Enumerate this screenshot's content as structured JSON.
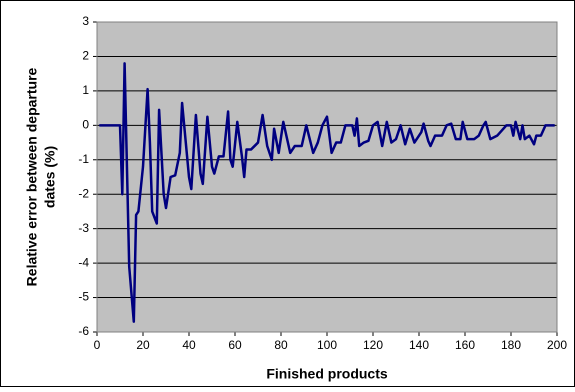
{
  "chart_data": {
    "type": "line",
    "xlabel": "Finished products",
    "ylabel": [
      "Relative error between departure",
      "dates (%)"
    ],
    "series": [
      {
        "name": "Relative error",
        "color": "#000080",
        "x": [
          1,
          10,
          11,
          12,
          14,
          16,
          17,
          18,
          20,
          22,
          23,
          24,
          26,
          27,
          29,
          30,
          32,
          34,
          36,
          37,
          40,
          41,
          43,
          45,
          46,
          48,
          50,
          51,
          53,
          55,
          57,
          58,
          59,
          61,
          63,
          64,
          65,
          67,
          70,
          72,
          74,
          76,
          77,
          79,
          81,
          84,
          86,
          89,
          91,
          94,
          96,
          98,
          100,
          102,
          104,
          106,
          108,
          111,
          112,
          113,
          114,
          116,
          118,
          120,
          122,
          124,
          126,
          128,
          130,
          132,
          134,
          136,
          138,
          141,
          142,
          144,
          145,
          147,
          150,
          152,
          154,
          156,
          158,
          159,
          161,
          164,
          166,
          168,
          169,
          171,
          174,
          178,
          180,
          181,
          182,
          184,
          185,
          186,
          188,
          190,
          191,
          193,
          195,
          199
        ],
        "values": [
          0,
          0,
          -2,
          1.8,
          -4.1,
          -5.7,
          -2.6,
          -2.5,
          -1.2,
          1.05,
          -0.5,
          -2.5,
          -2.85,
          0.45,
          -2,
          -2.4,
          -1.5,
          -1.45,
          -0.8,
          0.65,
          -1.5,
          -1.85,
          0.3,
          -1.4,
          -1.7,
          0.25,
          -1.2,
          -1.4,
          -0.9,
          -0.9,
          0.4,
          -1,
          -1.2,
          0.1,
          -0.9,
          -1.5,
          -0.7,
          -0.7,
          -0.5,
          0.3,
          -0.6,
          -1,
          -0.1,
          -0.8,
          0.1,
          -0.8,
          -0.6,
          -0.6,
          0,
          -0.8,
          -0.5,
          0,
          0.25,
          -0.8,
          -0.5,
          -0.5,
          0,
          0,
          -0.3,
          0.2,
          -0.6,
          -0.5,
          -0.45,
          0,
          0.1,
          -0.6,
          0.1,
          -0.5,
          -0.4,
          0,
          -0.55,
          -0.1,
          -0.5,
          -0.2,
          0.05,
          -0.45,
          -0.6,
          -0.3,
          -0.3,
          0,
          0.05,
          -0.4,
          -0.4,
          0.1,
          -0.4,
          -0.4,
          -0.3,
          0,
          0.1,
          -0.4,
          -0.3,
          0,
          0,
          -0.3,
          0.1,
          -0.4,
          0,
          -0.4,
          -0.3,
          -0.55,
          -0.3,
          -0.3,
          0,
          0
        ]
      }
    ],
    "xlim": [
      0,
      200
    ],
    "xticks": [
      0,
      20,
      40,
      60,
      80,
      100,
      120,
      140,
      160,
      180,
      200
    ],
    "ylim": [
      -6,
      3
    ],
    "yticks": [
      -6,
      -5,
      -4,
      -3,
      -2,
      -1,
      0,
      1,
      2,
      3
    ],
    "grid": true,
    "background": "#c0c0c0"
  }
}
